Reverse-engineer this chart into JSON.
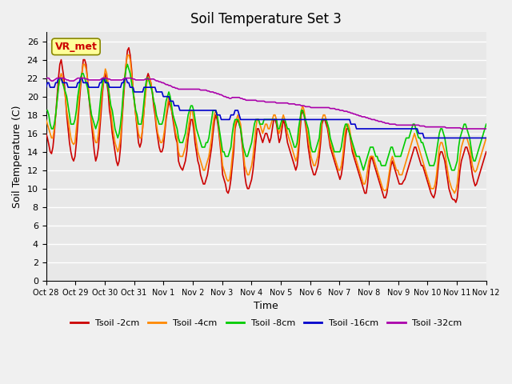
{
  "title": "Soil Temperature Set 3",
  "xlabel": "Time",
  "ylabel": "Soil Temperature (C)",
  "ylim": [
    0,
    27
  ],
  "yticks": [
    0,
    2,
    4,
    6,
    8,
    10,
    12,
    14,
    16,
    18,
    20,
    22,
    24,
    26
  ],
  "bg_color": "#e8e8e8",
  "plot_bg": "#e8e8e8",
  "series_colors": {
    "Tsoil -2cm": "#cc0000",
    "Tsoil -4cm": "#ff8800",
    "Tsoil -8cm": "#00cc00",
    "Tsoil -16cm": "#0000cc",
    "Tsoil -32cm": "#aa00aa"
  },
  "annotation_label": "VR_met",
  "annotation_color": "#cc0000",
  "annotation_bg": "#ffff99",
  "x_tick_labels": [
    "Oct 28",
    "Oct 29",
    "Oct 30",
    "Oct 31",
    "Nov 1",
    "Nov 2",
    "Nov 3",
    "Nov 4",
    "Nov 5",
    "Nov 6",
    "Nov 7",
    "Nov 8",
    "Nov 9",
    "Nov 10",
    "Nov 11",
    "Nov 12"
  ],
  "n_points": 320,
  "t2cm": [
    16.0,
    15.5,
    14.8,
    14.0,
    13.8,
    14.5,
    16.0,
    18.0,
    20.0,
    22.0,
    23.5,
    24.0,
    23.0,
    22.0,
    20.0,
    18.0,
    16.5,
    15.0,
    14.0,
    13.3,
    13.0,
    13.5,
    15.0,
    17.0,
    19.0,
    21.0,
    22.5,
    24.0,
    24.0,
    23.5,
    22.0,
    20.0,
    18.5,
    17.0,
    15.5,
    14.0,
    13.0,
    13.5,
    14.5,
    16.5,
    18.5,
    20.5,
    22.0,
    22.5,
    21.5,
    20.5,
    18.5,
    17.5,
    16.0,
    15.0,
    14.0,
    13.0,
    12.5,
    13.0,
    14.5,
    17.0,
    19.5,
    21.5,
    23.5,
    25.0,
    25.3,
    24.5,
    23.0,
    21.0,
    19.5,
    18.0,
    16.5,
    15.0,
    14.5,
    15.0,
    16.5,
    18.5,
    20.5,
    22.0,
    22.5,
    22.0,
    21.5,
    20.5,
    19.0,
    18.0,
    16.5,
    15.5,
    14.5,
    14.0,
    14.0,
    14.5,
    16.0,
    17.5,
    18.5,
    19.5,
    19.0,
    18.5,
    17.5,
    16.5,
    15.5,
    15.0,
    13.0,
    12.5,
    12.2,
    12.0,
    12.5,
    13.0,
    14.0,
    15.5,
    16.5,
    17.5,
    17.5,
    16.5,
    15.0,
    14.0,
    13.0,
    12.5,
    11.5,
    11.0,
    10.5,
    10.5,
    11.0,
    11.5,
    12.5,
    13.5,
    14.5,
    16.0,
    17.3,
    18.0,
    17.5,
    16.5,
    15.0,
    13.5,
    11.5,
    11.0,
    10.5,
    9.7,
    9.5,
    10.0,
    11.0,
    12.5,
    14.0,
    16.5,
    17.2,
    17.5,
    17.0,
    16.5,
    15.0,
    13.5,
    11.5,
    10.5,
    10.0,
    10.0,
    10.5,
    11.0,
    12.0,
    13.5,
    15.0,
    16.5,
    16.5,
    16.0,
    15.5,
    15.0,
    15.5,
    16.0,
    16.0,
    15.5,
    15.0,
    15.5,
    16.5,
    17.5,
    17.5,
    17.0,
    16.0,
    15.0,
    15.5,
    16.5,
    17.5,
    17.0,
    16.0,
    15.0,
    14.5,
    14.0,
    13.5,
    13.0,
    12.5,
    12.0,
    12.5,
    14.0,
    16.0,
    18.0,
    18.5,
    18.0,
    17.0,
    16.0,
    14.5,
    13.5,
    12.5,
    12.0,
    11.5,
    11.5,
    12.0,
    12.5,
    13.5,
    15.0,
    17.0,
    17.5,
    17.5,
    17.0,
    16.5,
    15.5,
    14.5,
    14.0,
    13.5,
    13.0,
    12.5,
    12.0,
    11.5,
    11.0,
    11.5,
    12.5,
    14.0,
    15.5,
    16.5,
    16.5,
    16.0,
    15.0,
    14.0,
    13.5,
    13.0,
    12.5,
    12.0,
    11.5,
    11.0,
    10.5,
    10.0,
    9.5,
    9.5,
    10.5,
    12.0,
    13.0,
    13.5,
    13.0,
    12.5,
    12.0,
    11.5,
    11.0,
    10.5,
    10.0,
    9.5,
    9.0,
    9.0,
    9.5,
    10.5,
    11.5,
    12.5,
    13.0,
    12.5,
    12.0,
    11.5,
    11.0,
    10.5,
    10.5,
    10.5,
    10.8,
    11.0,
    11.5,
    12.0,
    12.5,
    13.0,
    13.5,
    14.0,
    14.5,
    14.5,
    14.0,
    13.5,
    13.0,
    12.5,
    12.5,
    12.0,
    11.5,
    11.0,
    10.5,
    10.0,
    9.5,
    9.2,
    9.0,
    9.5,
    10.5,
    12.0,
    13.5,
    14.0,
    14.0,
    13.5,
    13.0,
    12.0,
    11.0,
    10.0,
    9.5,
    9.0,
    8.8,
    8.8,
    8.5,
    9.0,
    10.5,
    12.0,
    13.0,
    13.5,
    14.0,
    14.5,
    14.5,
    14.0,
    13.5,
    12.5,
    11.5,
    10.8,
    10.3,
    10.5,
    11.0,
    11.5,
    12.0,
    12.5,
    13.0,
    13.5,
    14.0
  ],
  "t4cm": [
    17.5,
    17.0,
    16.5,
    16.0,
    15.5,
    15.5,
    16.5,
    18.0,
    19.5,
    21.0,
    22.0,
    22.5,
    22.0,
    21.0,
    20.0,
    18.5,
    17.5,
    16.5,
    15.5,
    15.0,
    14.8,
    15.0,
    16.5,
    18.0,
    20.0,
    21.5,
    22.5,
    23.5,
    23.5,
    23.0,
    22.0,
    20.5,
    19.0,
    17.5,
    16.5,
    15.5,
    15.0,
    15.0,
    16.0,
    17.5,
    19.5,
    21.0,
    22.0,
    23.0,
    22.5,
    21.5,
    20.0,
    18.5,
    17.0,
    16.0,
    15.0,
    14.5,
    14.0,
    14.5,
    15.5,
    17.5,
    20.0,
    22.0,
    23.5,
    24.5,
    24.5,
    24.0,
    22.5,
    21.0,
    19.5,
    18.0,
    17.0,
    16.0,
    15.5,
    15.5,
    16.5,
    18.5,
    20.0,
    21.5,
    22.0,
    22.0,
    21.5,
    20.5,
    19.5,
    18.5,
    17.0,
    16.0,
    15.5,
    15.0,
    15.0,
    15.5,
    16.5,
    18.0,
    19.0,
    20.0,
    19.5,
    18.5,
    18.0,
    17.0,
    16.0,
    15.5,
    14.0,
    13.5,
    13.5,
    13.5,
    14.0,
    14.5,
    15.5,
    16.5,
    17.5,
    18.5,
    18.5,
    17.5,
    16.0,
    15.0,
    14.0,
    13.5,
    13.0,
    12.5,
    12.0,
    12.0,
    12.5,
    13.0,
    13.5,
    14.5,
    15.5,
    17.0,
    18.0,
    18.5,
    18.0,
    17.0,
    15.5,
    14.0,
    12.5,
    12.0,
    11.5,
    11.0,
    10.8,
    11.0,
    12.0,
    13.5,
    15.0,
    17.0,
    17.5,
    18.0,
    17.5,
    17.0,
    15.5,
    14.0,
    12.5,
    12.0,
    11.5,
    11.5,
    12.0,
    12.5,
    13.5,
    15.0,
    16.5,
    17.5,
    17.5,
    17.0,
    16.5,
    16.0,
    16.5,
    17.0,
    17.0,
    16.5,
    16.5,
    17.0,
    17.5,
    18.0,
    18.0,
    17.5,
    16.5,
    16.0,
    16.5,
    17.5,
    18.0,
    17.5,
    17.0,
    16.0,
    15.5,
    15.0,
    14.5,
    14.0,
    13.5,
    13.0,
    13.5,
    15.0,
    17.0,
    18.5,
    19.0,
    18.5,
    17.5,
    16.5,
    15.5,
    14.5,
    13.5,
    13.0,
    12.5,
    12.5,
    13.0,
    13.5,
    14.5,
    16.0,
    17.5,
    18.0,
    18.0,
    17.5,
    17.0,
    16.0,
    15.0,
    14.5,
    14.0,
    13.5,
    13.0,
    12.5,
    12.0,
    12.0,
    12.5,
    13.5,
    15.0,
    16.5,
    17.0,
    17.0,
    16.5,
    15.5,
    14.5,
    14.0,
    13.5,
    13.0,
    12.5,
    12.0,
    11.5,
    11.0,
    10.5,
    10.5,
    11.0,
    12.0,
    13.0,
    13.5,
    13.5,
    13.5,
    13.0,
    12.5,
    12.0,
    11.5,
    11.0,
    10.5,
    10.0,
    9.8,
    9.8,
    10.0,
    11.0,
    12.0,
    13.0,
    13.5,
    13.0,
    12.5,
    12.0,
    12.0,
    11.5,
    11.5,
    11.5,
    12.0,
    12.5,
    13.0,
    13.5,
    14.0,
    14.5,
    15.0,
    15.5,
    16.0,
    15.5,
    15.0,
    14.5,
    14.0,
    13.5,
    13.0,
    12.5,
    12.0,
    11.5,
    11.0,
    10.5,
    10.0,
    10.0,
    10.0,
    10.5,
    11.5,
    13.0,
    14.5,
    15.0,
    15.0,
    14.5,
    14.0,
    13.0,
    12.0,
    11.0,
    10.5,
    10.0,
    9.8,
    9.5,
    9.8,
    10.5,
    12.0,
    13.5,
    14.5,
    15.0,
    15.5,
    15.5,
    15.5,
    15.0,
    14.5,
    13.5,
    12.5,
    12.0,
    11.8,
    12.0,
    12.5,
    13.0,
    13.5,
    14.0,
    14.5,
    15.0,
    15.5
  ],
  "t8cm": [
    18.5,
    18.5,
    18.0,
    17.0,
    16.5,
    16.5,
    17.0,
    18.0,
    19.5,
    21.0,
    22.0,
    22.0,
    21.5,
    21.0,
    20.5,
    20.0,
    19.0,
    18.0,
    17.0,
    17.0,
    17.0,
    17.5,
    18.5,
    20.0,
    21.0,
    22.0,
    22.5,
    22.5,
    22.0,
    21.5,
    21.0,
    20.0,
    19.0,
    18.0,
    17.5,
    17.0,
    16.5,
    17.0,
    17.5,
    19.0,
    20.5,
    21.5,
    22.0,
    22.0,
    21.5,
    21.0,
    20.0,
    19.0,
    18.5,
    17.5,
    16.5,
    16.0,
    15.5,
    16.0,
    17.0,
    18.5,
    20.5,
    22.0,
    23.0,
    23.5,
    23.0,
    22.5,
    21.5,
    20.5,
    19.5,
    18.5,
    18.0,
    17.0,
    17.0,
    17.0,
    18.0,
    19.5,
    21.0,
    22.0,
    22.0,
    21.5,
    21.0,
    20.5,
    19.5,
    19.0,
    18.0,
    17.5,
    17.0,
    17.0,
    17.0,
    17.5,
    18.5,
    19.5,
    20.0,
    20.5,
    20.0,
    19.0,
    18.0,
    17.5,
    17.0,
    16.5,
    15.5,
    15.0,
    15.0,
    15.0,
    15.5,
    16.0,
    17.0,
    18.0,
    18.5,
    19.0,
    19.0,
    18.5,
    17.5,
    16.5,
    16.0,
    15.5,
    15.0,
    14.5,
    14.5,
    14.5,
    15.0,
    15.0,
    15.5,
    16.5,
    17.5,
    18.5,
    18.5,
    18.5,
    18.0,
    17.0,
    16.0,
    15.0,
    14.0,
    14.0,
    13.5,
    13.5,
    13.5,
    14.0,
    14.5,
    16.0,
    17.0,
    17.5,
    17.5,
    17.5,
    17.0,
    16.5,
    15.5,
    14.5,
    14.0,
    13.5,
    13.5,
    14.0,
    14.5,
    15.0,
    16.0,
    17.0,
    17.5,
    17.5,
    17.5,
    17.0,
    17.0,
    17.0,
    17.5,
    17.5,
    17.5,
    17.5,
    17.5,
    17.5,
    17.5,
    17.5,
    17.5,
    17.5,
    16.5,
    16.5,
    17.0,
    17.5,
    17.5,
    17.5,
    17.0,
    16.5,
    16.5,
    16.0,
    15.5,
    15.0,
    14.5,
    14.5,
    15.0,
    16.5,
    17.5,
    18.5,
    18.5,
    18.0,
    17.5,
    17.0,
    16.5,
    15.5,
    14.5,
    14.0,
    14.0,
    14.0,
    14.5,
    15.0,
    15.5,
    17.0,
    17.5,
    17.5,
    17.5,
    17.5,
    17.0,
    16.5,
    15.5,
    15.0,
    14.5,
    14.0,
    14.0,
    14.0,
    14.0,
    14.0,
    14.5,
    15.5,
    16.5,
    17.0,
    17.0,
    16.5,
    16.0,
    15.5,
    15.0,
    14.5,
    14.0,
    13.5,
    13.5,
    13.5,
    13.0,
    12.5,
    12.0,
    12.5,
    13.0,
    13.5,
    14.0,
    14.5,
    14.5,
    14.5,
    14.0,
    13.5,
    13.5,
    13.0,
    13.0,
    12.5,
    12.5,
    12.5,
    12.5,
    13.0,
    13.5,
    14.0,
    14.5,
    14.5,
    14.0,
    13.5,
    13.5,
    13.5,
    13.5,
    13.5,
    14.0,
    14.5,
    15.0,
    15.5,
    15.5,
    15.5,
    16.0,
    16.5,
    17.0,
    17.0,
    16.5,
    16.0,
    15.5,
    15.5,
    15.0,
    15.0,
    14.5,
    14.0,
    13.5,
    13.0,
    12.5,
    12.5,
    12.5,
    12.5,
    13.0,
    14.0,
    15.0,
    16.0,
    16.5,
    16.5,
    16.0,
    15.5,
    14.5,
    13.5,
    13.0,
    12.5,
    12.0,
    12.0,
    12.0,
    12.5,
    13.0,
    14.5,
    15.5,
    16.0,
    16.5,
    17.0,
    17.0,
    16.5,
    16.0,
    15.5,
    14.5,
    13.5,
    13.0,
    13.0,
    13.5,
    14.0,
    14.5,
    15.0,
    15.5,
    16.0,
    16.5,
    17.0
  ],
  "t16cm": [
    21.0,
    21.5,
    21.5,
    21.0,
    21.0,
    21.0,
    21.0,
    21.5,
    21.5,
    22.0,
    22.0,
    22.0,
    21.5,
    21.5,
    21.5,
    21.5,
    21.0,
    21.0,
    21.0,
    21.0,
    21.0,
    21.0,
    21.0,
    21.5,
    21.5,
    22.0,
    22.0,
    21.5,
    21.5,
    21.5,
    21.5,
    21.0,
    21.0,
    21.0,
    21.0,
    21.0,
    21.0,
    21.0,
    21.0,
    21.5,
    21.5,
    22.0,
    22.0,
    21.5,
    21.5,
    21.5,
    21.0,
    21.0,
    21.0,
    21.0,
    21.0,
    21.0,
    21.0,
    21.0,
    21.0,
    21.5,
    21.5,
    22.0,
    22.0,
    21.5,
    21.5,
    21.0,
    21.0,
    21.0,
    20.5,
    20.5,
    20.5,
    20.5,
    20.5,
    20.5,
    20.5,
    21.0,
    21.0,
    21.0,
    21.0,
    21.0,
    21.0,
    21.0,
    21.0,
    21.0,
    20.5,
    20.5,
    20.5,
    20.5,
    20.5,
    20.0,
    20.0,
    20.0,
    20.0,
    20.0,
    19.5,
    19.5,
    19.5,
    19.0,
    19.0,
    19.0,
    19.0,
    18.5,
    18.5,
    18.5,
    18.5,
    18.5,
    18.5,
    18.5,
    18.5,
    18.5,
    18.5,
    18.5,
    18.5,
    18.5,
    18.5,
    18.5,
    18.5,
    18.5,
    18.5,
    18.5,
    18.5,
    18.5,
    18.5,
    18.5,
    18.5,
    18.5,
    18.5,
    18.5,
    18.0,
    18.0,
    18.0,
    17.5,
    17.5,
    17.5,
    17.5,
    17.5,
    17.5,
    17.5,
    18.0,
    18.0,
    18.0,
    18.5,
    18.5,
    18.5,
    18.0,
    17.5,
    17.5,
    17.5,
    17.5,
    17.5,
    17.5,
    17.5,
    17.5,
    17.5,
    17.5,
    17.5,
    17.5,
    17.5,
    17.5,
    17.5,
    17.5,
    17.5,
    17.5,
    17.5,
    17.5,
    17.5,
    17.5,
    17.5,
    17.5,
    17.5,
    17.5,
    17.5,
    17.5,
    17.5,
    17.5,
    17.5,
    17.5,
    17.5,
    17.5,
    17.5,
    17.5,
    17.5,
    17.5,
    17.5,
    17.5,
    17.5,
    17.5,
    17.5,
    17.5,
    17.5,
    17.5,
    17.5,
    17.5,
    17.5,
    17.5,
    17.5,
    17.5,
    17.5,
    17.5,
    17.5,
    17.5,
    17.5,
    17.5,
    17.5,
    17.5,
    17.5,
    17.5,
    17.5,
    17.5,
    17.5,
    17.5,
    17.5,
    17.5,
    17.5,
    17.5,
    17.5,
    17.5,
    17.5,
    17.5,
    17.5,
    17.5,
    17.5,
    17.5,
    17.5,
    17.5,
    17.0,
    17.0,
    17.0,
    17.0,
    16.5,
    16.5,
    16.5,
    16.5,
    16.5,
    16.5,
    16.5,
    16.5,
    16.5,
    16.5,
    16.5,
    16.5,
    16.5,
    16.5,
    16.5,
    16.5,
    16.5,
    16.5,
    16.5,
    16.5,
    16.5,
    16.5,
    16.5,
    16.5,
    16.5,
    16.5,
    16.5,
    16.5,
    16.5,
    16.5,
    16.5,
    16.5,
    16.5,
    16.5,
    16.5,
    16.5,
    16.5,
    16.5,
    16.5,
    16.5,
    16.5,
    16.5,
    16.5,
    16.5,
    16.5,
    16.0,
    16.0,
    16.0,
    16.0,
    15.5,
    15.5,
    15.5,
    15.5,
    15.5,
    15.5,
    15.5,
    15.5,
    15.5,
    15.5,
    15.5,
    15.5,
    15.5,
    15.5,
    15.5,
    15.5,
    15.5,
    15.5,
    15.5,
    15.5,
    15.5,
    15.5,
    15.5,
    15.5,
    15.5,
    15.5,
    15.5,
    15.5,
    15.5,
    15.5,
    15.5,
    15.5,
    15.5,
    15.5,
    15.5,
    15.5,
    15.5,
    15.5,
    15.5,
    15.5,
    15.5,
    15.5,
    15.5,
    15.5,
    15.5,
    15.5
  ],
  "t32cm": [
    22.0,
    22.0,
    22.0,
    21.8,
    21.7,
    21.7,
    21.8,
    21.9,
    22.0,
    22.0,
    22.0,
    22.0,
    22.0,
    22.0,
    21.9,
    21.8,
    21.8,
    21.7,
    21.7,
    21.7,
    21.7,
    21.8,
    21.9,
    22.0,
    22.0,
    22.0,
    22.0,
    22.0,
    22.0,
    21.9,
    21.9,
    21.8,
    21.8,
    21.8,
    21.8,
    21.8,
    21.8,
    21.8,
    21.8,
    21.8,
    21.9,
    22.0,
    22.0,
    22.0,
    22.0,
    21.9,
    21.9,
    21.8,
    21.8,
    21.8,
    21.8,
    21.8,
    21.8,
    21.8,
    21.8,
    21.8,
    21.9,
    22.0,
    22.0,
    22.0,
    22.0,
    22.0,
    22.0,
    21.9,
    21.9,
    21.8,
    21.8,
    21.8,
    21.8,
    21.8,
    21.8,
    21.8,
    21.9,
    21.9,
    21.9,
    21.9,
    21.9,
    21.9,
    21.9,
    21.8,
    21.7,
    21.7,
    21.6,
    21.6,
    21.5,
    21.5,
    21.4,
    21.3,
    21.3,
    21.2,
    21.2,
    21.1,
    21.0,
    21.0,
    20.9,
    20.9,
    20.8,
    20.8,
    20.8,
    20.8,
    20.8,
    20.8,
    20.8,
    20.8,
    20.8,
    20.8,
    20.8,
    20.8,
    20.8,
    20.8,
    20.8,
    20.8,
    20.7,
    20.7,
    20.7,
    20.7,
    20.7,
    20.6,
    20.6,
    20.5,
    20.5,
    20.5,
    20.4,
    20.4,
    20.3,
    20.3,
    20.2,
    20.2,
    20.1,
    20.0,
    20.0,
    19.9,
    19.9,
    19.8,
    19.8,
    19.9,
    19.9,
    19.9,
    19.9,
    19.9,
    19.9,
    19.8,
    19.8,
    19.7,
    19.7,
    19.6,
    19.6,
    19.6,
    19.6,
    19.6,
    19.6,
    19.6,
    19.6,
    19.5,
    19.5,
    19.5,
    19.5,
    19.5,
    19.5,
    19.4,
    19.4,
    19.4,
    19.4,
    19.4,
    19.4,
    19.4,
    19.4,
    19.3,
    19.3,
    19.3,
    19.3,
    19.3,
    19.3,
    19.3,
    19.3,
    19.3,
    19.2,
    19.2,
    19.2,
    19.2,
    19.2,
    19.1,
    19.1,
    19.1,
    19.1,
    19.0,
    19.0,
    19.0,
    18.9,
    18.9,
    18.9,
    18.9,
    18.8,
    18.8,
    18.8,
    18.8,
    18.8,
    18.8,
    18.8,
    18.8,
    18.8,
    18.8,
    18.8,
    18.8,
    18.8,
    18.8,
    18.7,
    18.7,
    18.7,
    18.7,
    18.6,
    18.6,
    18.6,
    18.5,
    18.5,
    18.5,
    18.4,
    18.4,
    18.4,
    18.3,
    18.3,
    18.2,
    18.2,
    18.1,
    18.1,
    18.0,
    18.0,
    17.9,
    17.9,
    17.8,
    17.8,
    17.8,
    17.7,
    17.7,
    17.6,
    17.6,
    17.5,
    17.5,
    17.5,
    17.4,
    17.4,
    17.3,
    17.3,
    17.3,
    17.2,
    17.2,
    17.1,
    17.1,
    17.1,
    17.0,
    17.0,
    17.0,
    17.0,
    17.0,
    16.9,
    16.9,
    16.9,
    16.9,
    16.9,
    16.9,
    16.9,
    16.9,
    16.9,
    16.9,
    16.9,
    16.9,
    16.9,
    16.9,
    16.9,
    16.9,
    16.9,
    16.8,
    16.8,
    16.8,
    16.8,
    16.7,
    16.7,
    16.7,
    16.7,
    16.7,
    16.7,
    16.7,
    16.7,
    16.7,
    16.7,
    16.7,
    16.7,
    16.7,
    16.7,
    16.7,
    16.6,
    16.6,
    16.6,
    16.6,
    16.6,
    16.6,
    16.6,
    16.6,
    16.6,
    16.6,
    16.6,
    16.5,
    16.5,
    16.5,
    16.5,
    16.5,
    16.5,
    16.5,
    16.5,
    16.5,
    16.5,
    16.5,
    16.5,
    16.5,
    16.5,
    16.5,
    16.5,
    16.5,
    16.5,
    16.5
  ]
}
